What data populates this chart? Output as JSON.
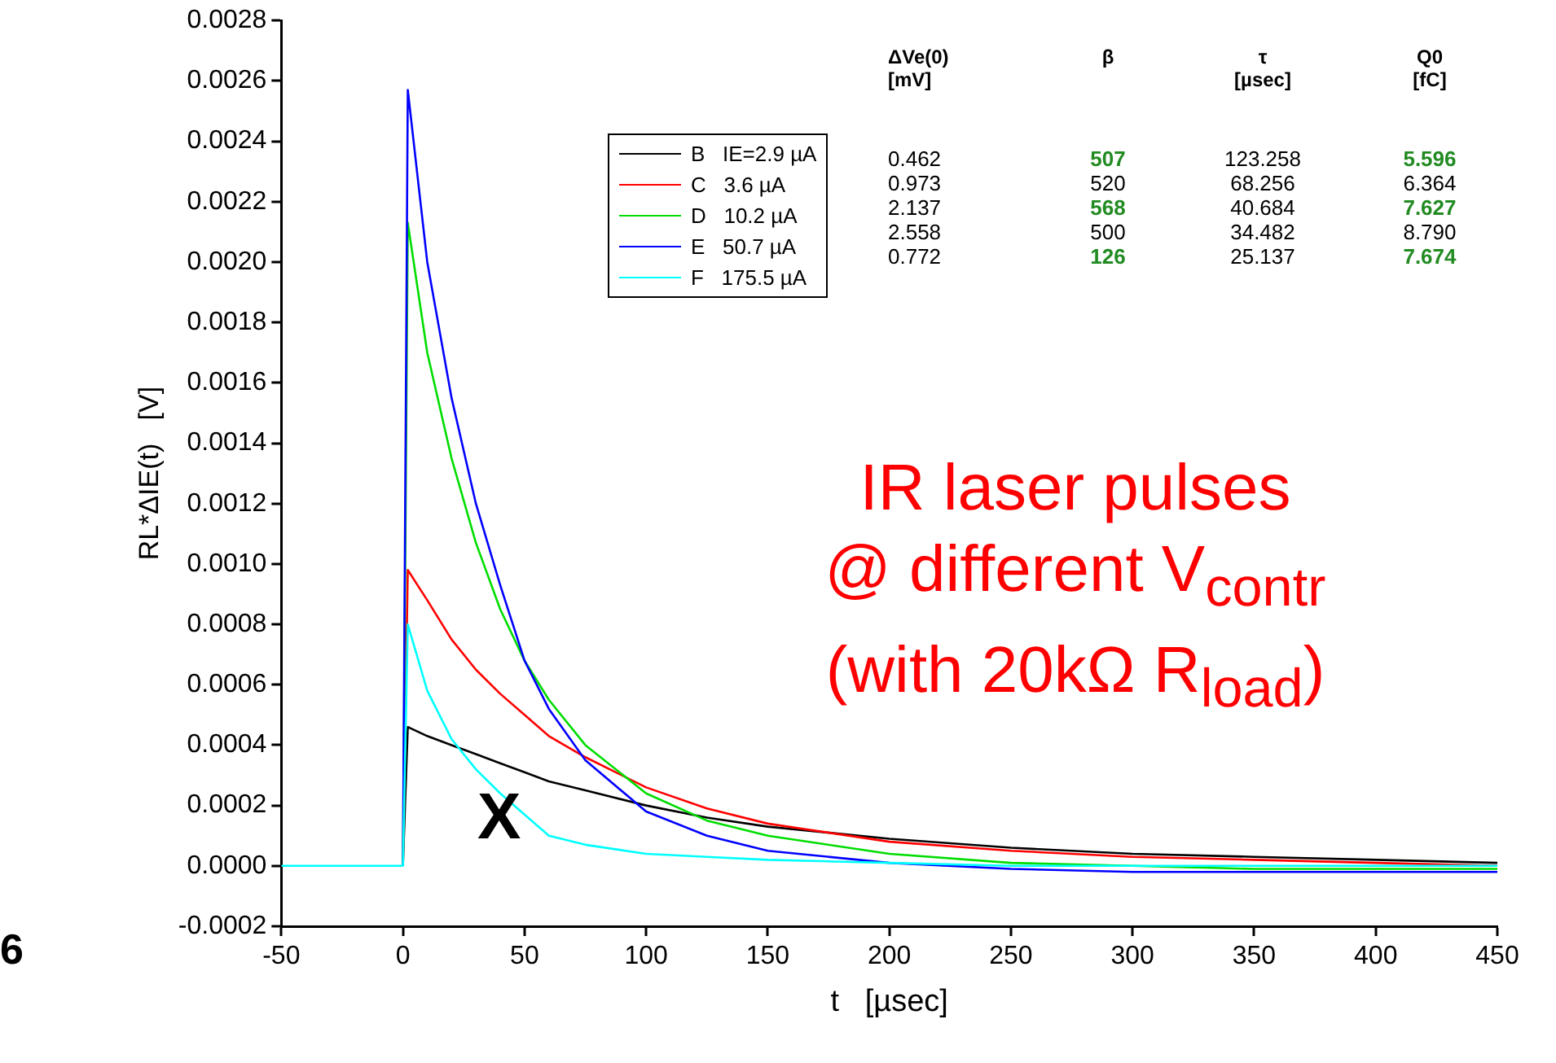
{
  "chart_data": {
    "type": "line",
    "xlabel": "t   [µsec]",
    "ylabel": "RL*ΔIE(t)   [V]",
    "xlim": [
      -50,
      450
    ],
    "xticks": [
      -50,
      0,
      50,
      100,
      150,
      200,
      250,
      300,
      350,
      400,
      450
    ],
    "ylim": [
      -0.0002,
      0.0028
    ],
    "yticks": [
      -0.0002,
      {
        "value": 0,
        "label": "0.0000"
      },
      0.0002,
      0.0004,
      0.0006,
      0.0008,
      {
        "value": 0.001,
        "label": "0.0010"
      },
      0.0012,
      0.0014,
      0.0016,
      0.0018,
      {
        "value": 0.002,
        "label": "0.0020"
      },
      0.0022,
      0.0024,
      0.0026,
      0.0028
    ],
    "grid": false,
    "legend": "top",
    "marker": "none",
    "line_style": "solid",
    "x": [
      -50,
      -25,
      0,
      2,
      10,
      20,
      30,
      40,
      50,
      60,
      75,
      100,
      125,
      150,
      200,
      250,
      300,
      350,
      400,
      450
    ],
    "series": [
      {
        "name": "B   IE=2.9 µA",
        "color": "#000000",
        "values": [
          null,
          null,
          0,
          0.00046,
          0.00043,
          0.0004,
          0.00037,
          0.00034,
          0.00031,
          0.00028,
          0.00025,
          0.0002,
          0.00016,
          0.00013,
          9e-05,
          6e-05,
          4e-05,
          3e-05,
          2e-05,
          1e-05
        ]
      },
      {
        "name": "C   3.6 µA",
        "color": "#ff0000",
        "values": [
          null,
          null,
          0,
          0.00098,
          0.00088,
          0.00075,
          0.00065,
          0.00057,
          0.0005,
          0.00043,
          0.00036,
          0.00026,
          0.00019,
          0.00014,
          8e-05,
          5e-05,
          3e-05,
          2e-05,
          1e-05,
          0
        ]
      },
      {
        "name": "D   10.2 µA",
        "color": "#00dd00",
        "values": [
          null,
          null,
          0,
          0.00213,
          0.0017,
          0.00135,
          0.00107,
          0.00085,
          0.00068,
          0.00055,
          0.0004,
          0.00024,
          0.00015,
          0.0001,
          4e-05,
          1e-05,
          0,
          -1e-05,
          -1e-05,
          -1e-05
        ]
      },
      {
        "name": "E   50.7 µA",
        "color": "#0000ff",
        "values": [
          null,
          null,
          0,
          0.00257,
          0.002,
          0.00155,
          0.0012,
          0.00093,
          0.00068,
          0.00052,
          0.00035,
          0.00018,
          0.0001,
          5e-05,
          1e-05,
          -1e-05,
          -2e-05,
          -2e-05,
          -2e-05,
          -2e-05
        ]
      },
      {
        "name": "F   175.5 µA",
        "color": "#00ffff",
        "values": [
          0,
          0,
          0,
          0.0008,
          0.00058,
          0.00042,
          0.00032,
          0.00024,
          0.00017,
          0.0001,
          7e-05,
          4e-05,
          3e-05,
          2e-05,
          1e-05,
          0,
          0,
          0,
          0,
          0
        ]
      }
    ],
    "annotations": [
      "IR laser pulses\n@ different V$_{contr}$\n(with 20kΩ R$_{load}$)",
      "X",
      "6",
      "ΔVe(0)\n[mV]",
      "β\n ",
      "τ\n[µsec]",
      "Q0\n[fC]",
      "0.462",
      "507",
      "123.258",
      "5.596",
      "0.973",
      "520",
      "68.256",
      "6.364",
      "2.137",
      "568",
      "40.684",
      "7.627",
      "2.558",
      "500",
      "34.482",
      "8.790",
      "0.772",
      "126",
      "25.137",
      "7.674"
    ]
  }
}
